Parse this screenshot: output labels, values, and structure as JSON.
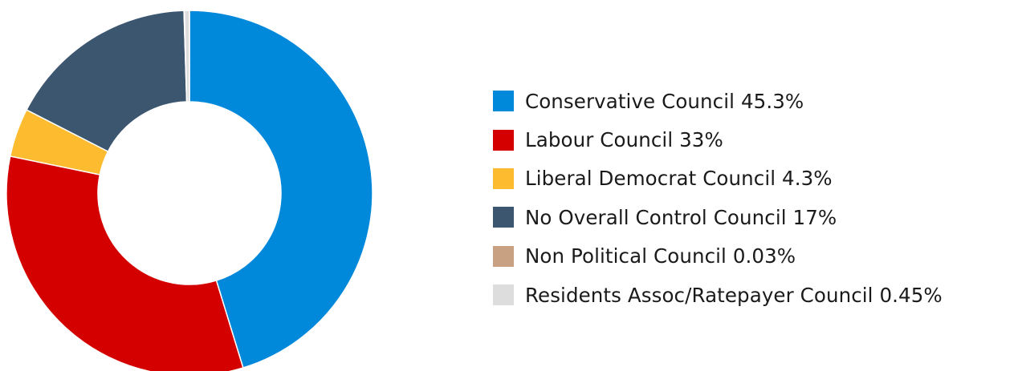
{
  "chart_data": {
    "type": "pie",
    "variant": "donut",
    "title": "",
    "legend_position": "right",
    "series": [
      {
        "name": "Conservative Council",
        "value": 45.3,
        "label": "Conservative Council 45.3%",
        "color": "#0088DB"
      },
      {
        "name": "Labour Council",
        "value": 33,
        "label": "Labour Council 33%",
        "color": "#D40000"
      },
      {
        "name": "Liberal Democrat Council",
        "value": 4.3,
        "label": "Liberal Democrat Council 4.3%",
        "color": "#FDBB30"
      },
      {
        "name": "No Overall Control Council",
        "value": 17,
        "label": "No Overall Control Council 17%",
        "color": "#3D5670"
      },
      {
        "name": "Non Political Council",
        "value": 0.03,
        "label": "Non Political Council 0.03%",
        "color": "#C8A182"
      },
      {
        "name": "Residents Assoc/Ratepayer Council",
        "value": 0.45,
        "label": "Residents Assoc/Ratepayer Council 0.45%",
        "color": "#DDDDDD"
      }
    ]
  }
}
